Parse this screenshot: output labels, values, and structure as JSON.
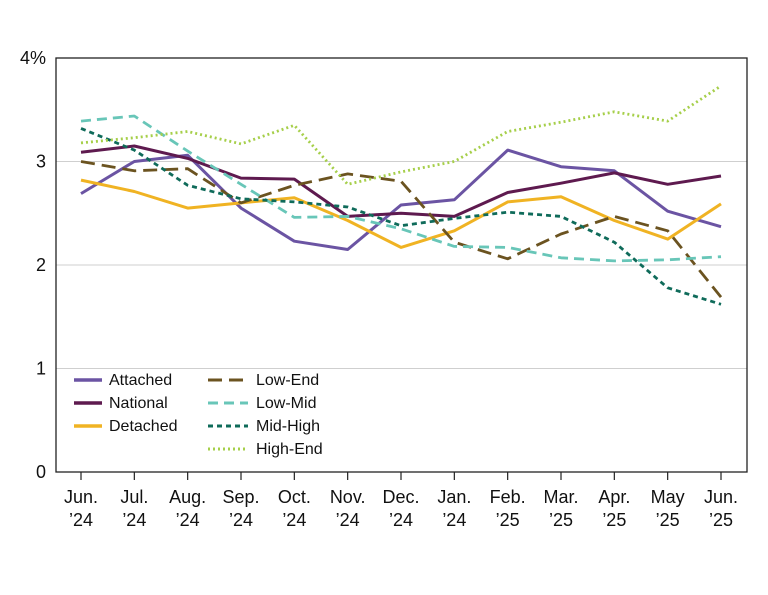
{
  "chart_data": {
    "type": "line",
    "categories": [
      [
        "Jun.",
        "’24"
      ],
      [
        "Jul.",
        "’24"
      ],
      [
        "Aug.",
        "’24"
      ],
      [
        "Sep.",
        "’24"
      ],
      [
        "Oct.",
        "’24"
      ],
      [
        "Nov.",
        "’24"
      ],
      [
        "Dec.",
        "’24"
      ],
      [
        "Jan.",
        "’24"
      ],
      [
        "Feb.",
        "’25"
      ],
      [
        "Mar.",
        "’25"
      ],
      [
        "Apr.",
        "’25"
      ],
      [
        "May",
        "’25"
      ],
      [
        "Jun.",
        "’25"
      ]
    ],
    "ylim": [
      0,
      4
    ],
    "yticks": [
      {
        "value": 0,
        "label": "0"
      },
      {
        "value": 1,
        "label": "1"
      },
      {
        "value": 2,
        "label": "2"
      },
      {
        "value": 3,
        "label": "3"
      },
      {
        "value": 4,
        "label": "4%"
      }
    ],
    "grid": "horizontal",
    "legend": "bottom-left",
    "series": [
      {
        "name": "Attached",
        "color": "#6b54a3",
        "dash": "solid",
        "values": [
          2.69,
          3.0,
          3.06,
          2.55,
          2.23,
          2.15,
          2.58,
          2.63,
          3.11,
          2.95,
          2.91,
          2.52,
          2.37
        ]
      },
      {
        "name": "National",
        "color": "#5e1a4f",
        "dash": "solid",
        "values": [
          3.09,
          3.15,
          3.03,
          2.84,
          2.83,
          2.47,
          2.5,
          2.47,
          2.7,
          2.79,
          2.89,
          2.78,
          2.86
        ]
      },
      {
        "name": "Detached",
        "color": "#f0b323",
        "dash": "solid",
        "values": [
          2.82,
          2.71,
          2.55,
          2.6,
          2.65,
          2.43,
          2.17,
          2.33,
          2.61,
          2.66,
          2.43,
          2.25,
          2.59
        ]
      },
      {
        "name": "Low-End",
        "color": "#6b5320",
        "dash": "long",
        "values": [
          3.0,
          2.91,
          2.93,
          2.6,
          2.77,
          2.88,
          2.81,
          2.22,
          2.06,
          2.3,
          2.47,
          2.33,
          1.69
        ]
      },
      {
        "name": "Low-Mid",
        "color": "#68c6b8",
        "dash": "medium",
        "values": [
          3.39,
          3.44,
          3.1,
          2.78,
          2.46,
          2.47,
          2.35,
          2.18,
          2.17,
          2.07,
          2.04,
          2.05,
          2.08
        ]
      },
      {
        "name": "Mid-High",
        "color": "#0f6b5a",
        "dash": "short",
        "values": [
          3.32,
          3.11,
          2.77,
          2.64,
          2.61,
          2.56,
          2.38,
          2.45,
          2.51,
          2.47,
          2.22,
          1.78,
          1.62
        ]
      },
      {
        "name": "High-End",
        "color": "#a6cf4a",
        "dash": "dot",
        "values": [
          3.18,
          3.23,
          3.29,
          3.17,
          3.35,
          2.78,
          2.9,
          3.0,
          3.29,
          3.38,
          3.48,
          3.39,
          3.73
        ]
      }
    ]
  }
}
